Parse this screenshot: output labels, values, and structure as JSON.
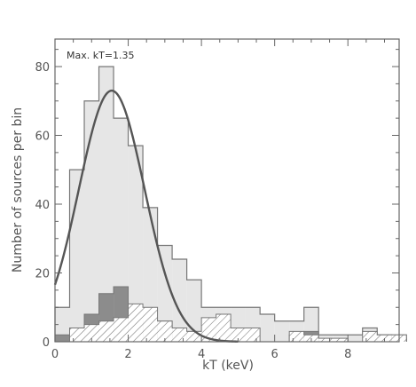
{
  "chart_data": {
    "type": "bar",
    "xlabel": "kT (keV)",
    "ylabel": "Number of sources per bin",
    "annotation": "Max. kT=1.35",
    "xlim": [
      0,
      9.4
    ],
    "ylim": [
      0,
      88
    ],
    "x_ticks": [
      0,
      2,
      4,
      6,
      8
    ],
    "y_ticks": [
      0,
      20,
      40,
      60,
      80
    ],
    "bin_width": 0.4,
    "bin_starts": [
      0,
      0.4,
      0.8,
      1.2,
      1.6,
      2.0,
      2.4,
      2.8,
      3.2,
      3.6,
      4.0,
      4.4,
      4.8,
      5.2,
      5.6,
      6.0,
      6.4,
      6.8,
      7.2,
      7.6,
      8.0,
      8.4,
      8.8,
      9.2
    ],
    "series": [
      {
        "fill": "light-gray",
        "values": [
          10,
          50,
          70,
          80,
          65,
          57,
          39,
          28,
          24,
          18,
          10,
          10,
          10,
          10,
          8,
          6,
          6,
          10,
          2,
          2,
          2,
          4,
          2,
          1
        ]
      },
      {
        "fill": "dark-gray",
        "values": [
          2,
          2,
          8,
          14,
          16,
          6,
          6,
          6,
          3,
          3,
          2,
          0,
          0,
          0,
          0,
          0,
          2,
          3,
          0,
          0,
          0,
          0,
          0,
          2
        ]
      },
      {
        "fill": "hatched",
        "values": [
          0,
          4,
          5,
          6,
          7,
          11,
          10,
          6,
          4,
          3,
          7,
          8,
          4,
          4,
          0,
          0,
          3,
          2,
          1,
          1,
          0,
          3,
          2,
          2
        ]
      }
    ],
    "fit_curve": {
      "type": "gaussian",
      "peak_x": 1.55,
      "peak_y": 73,
      "sigma": 0.9
    },
    "colors": {
      "light": "#e6e6e6",
      "dark": "#8c8c8c",
      "edge": "#777777",
      "curve": "#555555",
      "hatch": "#777777"
    }
  }
}
